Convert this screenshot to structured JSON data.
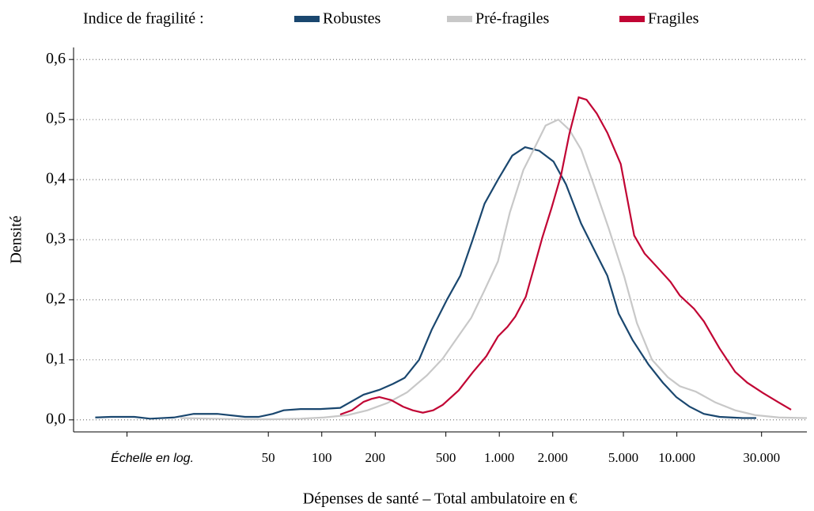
{
  "chart_data": {
    "type": "line",
    "legend_title": "Indice de fragilité :",
    "legend": "top",
    "xlabel": "Dépenses de santé – Total ambulatoire en €",
    "ylabel": "Densité",
    "xscale": "log",
    "grid": true,
    "xlim": [
      4,
      54000
    ],
    "ylim": [
      -0.02,
      0.62
    ],
    "xticks": [
      {
        "value": 8,
        "label": "Échelle en log."
      },
      50,
      100,
      200,
      500,
      {
        "value": 1000,
        "label": "1.000"
      },
      {
        "value": 2000,
        "label": "2.000"
      },
      {
        "value": 5000,
        "label": "5.000"
      },
      {
        "value": 10000,
        "label": "10.000"
      },
      {
        "value": 30000,
        "label": "30.000"
      }
    ],
    "yticks": [
      {
        "value": 0,
        "label": "0,0"
      },
      {
        "value": 0.1,
        "label": "0,1"
      },
      {
        "value": 0.2,
        "label": "0,2"
      },
      {
        "value": 0.3,
        "label": "0,3"
      },
      {
        "value": 0.4,
        "label": "0,4"
      },
      {
        "value": 0.5,
        "label": "0,5"
      },
      {
        "value": 0.6,
        "label": "0,6"
      }
    ],
    "series": [
      {
        "name": "Robustes",
        "color": "#1a476f",
        "x": [
          5.3,
          6.5,
          8.8,
          10.8,
          14.7,
          19,
          25.8,
          37,
          44,
          53,
          61,
          76,
          98,
          127,
          172,
          211,
          252,
          293,
          353,
          416,
          507,
          603,
          708,
          826,
          983,
          1183,
          1397,
          1680,
          2020,
          2375,
          2888,
          3440,
          4060,
          4700,
          5630,
          6930,
          8340,
          9930,
          11800,
          14200,
          17400,
          23500,
          28000
        ],
        "values": [
          0.004,
          0.005,
          0.005,
          0.002,
          0.004,
          0.01,
          0.01,
          0.005,
          0.005,
          0.01,
          0.016,
          0.018,
          0.018,
          0.02,
          0.042,
          0.05,
          0.06,
          0.07,
          0.1,
          0.15,
          0.2,
          0.24,
          0.3,
          0.36,
          0.4,
          0.44,
          0.454,
          0.448,
          0.43,
          0.392,
          0.327,
          0.282,
          0.24,
          0.177,
          0.133,
          0.092,
          0.062,
          0.038,
          0.022,
          0.01,
          0.005,
          0.003,
          0.003
        ]
      },
      {
        "name": "Pré-fragiles",
        "color": "#c8c8c8",
        "x": [
          16,
          24.5,
          37,
          53,
          76,
          103,
          140,
          181,
          234,
          303,
          391,
          480,
          590,
          695,
          820,
          983,
          1146,
          1366,
          1593,
          1822,
          2150,
          2480,
          2890,
          3370,
          4130,
          5060,
          5960,
          7250,
          8900,
          10400,
          12800,
          16500,
          21300,
          27600,
          37500,
          54000
        ],
        "values": [
          0.003,
          0.002,
          0.001,
          0.001,
          0.002,
          0.004,
          0.008,
          0.016,
          0.028,
          0.046,
          0.074,
          0.102,
          0.14,
          0.17,
          0.214,
          0.264,
          0.345,
          0.416,
          0.455,
          0.49,
          0.5,
          0.483,
          0.45,
          0.395,
          0.319,
          0.238,
          0.161,
          0.1,
          0.071,
          0.056,
          0.047,
          0.029,
          0.016,
          0.008,
          0.004,
          0.003
        ]
      },
      {
        "name": "Fragiles",
        "color": "#c10534",
        "x": [
          127,
          148,
          172,
          191,
          211,
          246,
          287,
          325,
          371,
          424,
          480,
          590,
          708,
          845,
          983,
          1112,
          1231,
          1410,
          1560,
          1745,
          1970,
          2230,
          2480,
          2800,
          3100,
          3540,
          4060,
          4830,
          5750,
          6580,
          7820,
          9200,
          10400,
          12500,
          14200,
          17400,
          21300,
          24900,
          30500,
          37500,
          44000
        ],
        "values": [
          0.009,
          0.016,
          0.03,
          0.035,
          0.038,
          0.033,
          0.022,
          0.016,
          0.012,
          0.016,
          0.025,
          0.049,
          0.079,
          0.106,
          0.139,
          0.155,
          0.172,
          0.205,
          0.251,
          0.303,
          0.353,
          0.408,
          0.476,
          0.537,
          0.533,
          0.51,
          0.478,
          0.426,
          0.307,
          0.277,
          0.253,
          0.23,
          0.207,
          0.185,
          0.164,
          0.119,
          0.08,
          0.062,
          0.045,
          0.029,
          0.017
        ]
      }
    ]
  }
}
